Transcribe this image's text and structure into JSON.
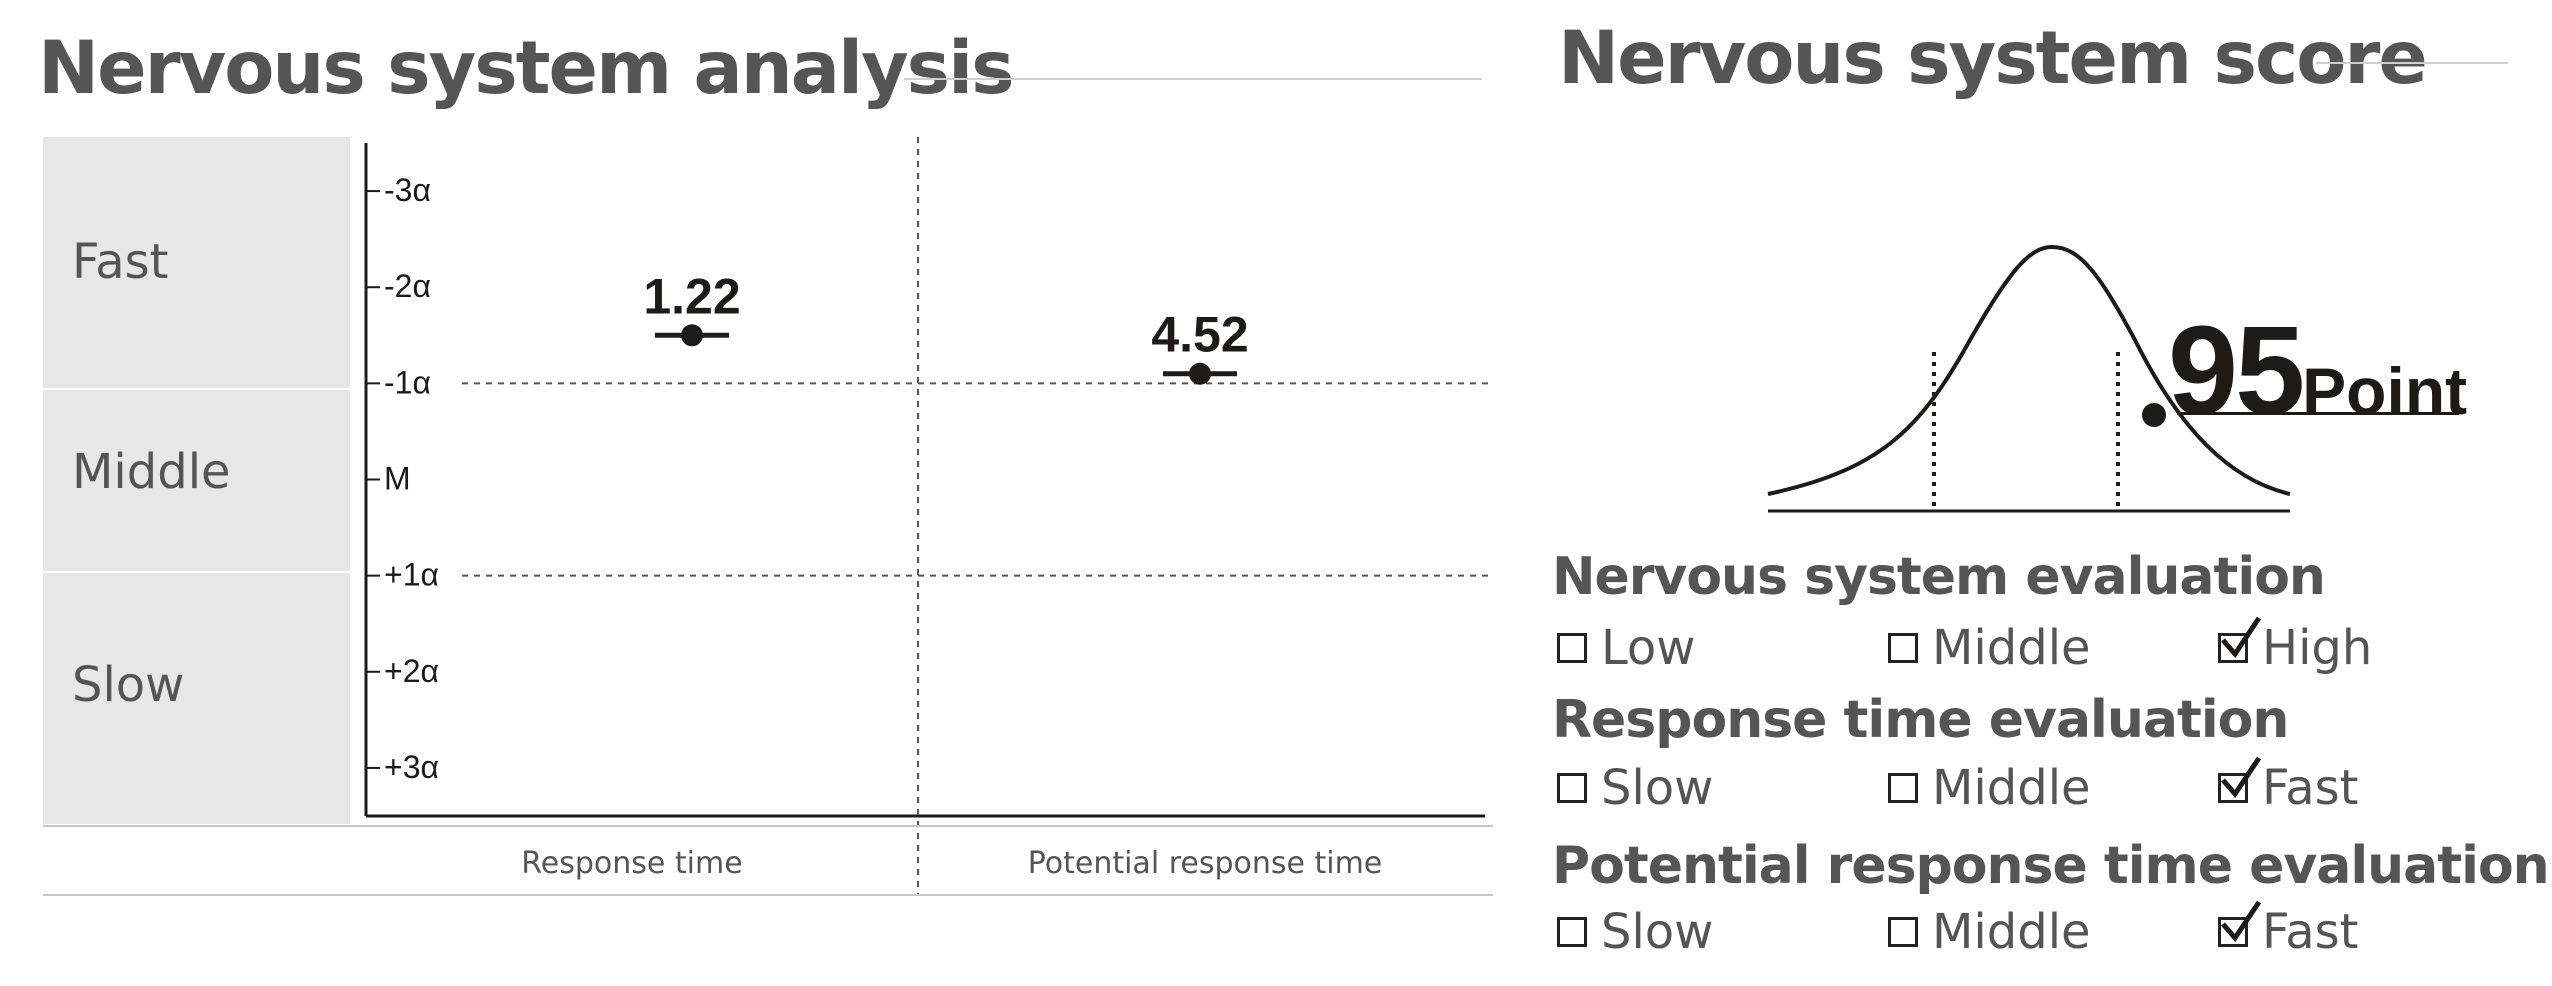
{
  "analysis": {
    "title": "Nervous system analysis",
    "bands": [
      {
        "label": "Fast"
      },
      {
        "label": "Middle"
      },
      {
        "label": "Slow"
      }
    ]
  },
  "chart_data": {
    "type": "scatter",
    "categories": [
      "Response time",
      "Potential response time"
    ],
    "y_ticks": [
      "-3α",
      "-2α",
      "-1α",
      "M",
      "+1α",
      "+2α",
      "+3α"
    ],
    "y_tick_values": [
      -3,
      -2,
      -1,
      0,
      1,
      2,
      3
    ],
    "ylim": [
      -3.5,
      3.5
    ],
    "y_inverted": true,
    "points": [
      {
        "category": "Response time",
        "y": -1.5,
        "label": "1.22"
      },
      {
        "category": "Potential response time",
        "y": -1.1,
        "label": "4.52"
      }
    ],
    "reference_lines": [
      -1,
      1
    ],
    "grid": false
  },
  "score": {
    "title": "Nervous system score",
    "value": "95",
    "unit": "Point",
    "level": 0.8
  },
  "evaluations": [
    {
      "title": "Nervous system evaluation",
      "options": [
        {
          "label": "Low",
          "checked": false
        },
        {
          "label": "Middle",
          "checked": false
        },
        {
          "label": "High",
          "checked": true
        }
      ]
    },
    {
      "title": "Response time evaluation",
      "options": [
        {
          "label": "Slow",
          "checked": false
        },
        {
          "label": "Middle",
          "checked": false
        },
        {
          "label": "Fast",
          "checked": true
        }
      ]
    },
    {
      "title": "Potential response time evaluation",
      "options": [
        {
          "label": "Slow",
          "checked": false
        },
        {
          "label": "Middle",
          "checked": false
        },
        {
          "label": "Fast",
          "checked": true
        }
      ]
    }
  ],
  "colors": {
    "mark": "#1d1a1a",
    "band": "#e7e7e8",
    "text": "#555555",
    "rule": "#cfcfcf"
  }
}
